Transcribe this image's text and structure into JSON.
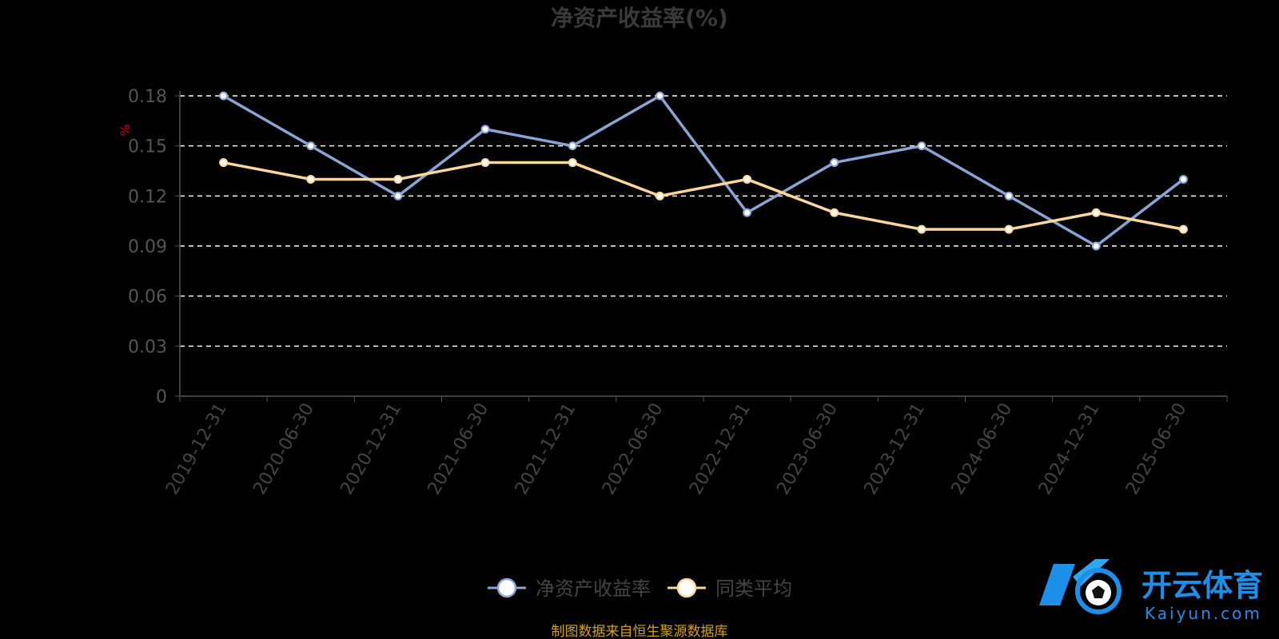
{
  "chart_data": {
    "type": "line",
    "title": "净资产收益率(%)",
    "ylabel": "%",
    "xlabel": "",
    "ylim": [
      0,
      0.18
    ],
    "yticks": [
      0,
      0.03,
      0.06,
      0.09,
      0.12,
      0.15,
      0.18
    ],
    "ytick_labels": [
      "0",
      "0.03",
      "0.06",
      "0.09",
      "0.12",
      "0.15",
      "0.18"
    ],
    "grid": true,
    "legend_position": "bottom-center",
    "categories": [
      "2019-12-31",
      "2020-06-30",
      "2020-12-31",
      "2021-06-30",
      "2021-12-31",
      "2022-06-30",
      "2022-12-31",
      "2023-06-30",
      "2023-12-31",
      "2024-06-30",
      "2024-12-31",
      "2025-06-30"
    ],
    "series": [
      {
        "name": "净资产收益率",
        "color": "#8aa4d6",
        "values": [
          0.18,
          0.15,
          0.12,
          0.16,
          0.15,
          0.18,
          0.11,
          0.14,
          0.15,
          0.12,
          0.09,
          0.13
        ]
      },
      {
        "name": "同类平均",
        "color": "#fbd89a",
        "values": [
          0.14,
          0.13,
          0.13,
          0.14,
          0.14,
          0.12,
          0.13,
          0.11,
          0.1,
          0.1,
          0.11,
          0.1
        ]
      }
    ]
  },
  "source_note": "制图数据来自恒生聚源数据库",
  "watermark": {
    "brand": "开云体育",
    "domain": "Kaiyun.com"
  },
  "colors": {
    "background": "#000000",
    "grid": "#ffffff",
    "axis": "#555555",
    "tick_text": "#555555",
    "unit_label": "#cc0000",
    "source_note": "#d4a017"
  }
}
